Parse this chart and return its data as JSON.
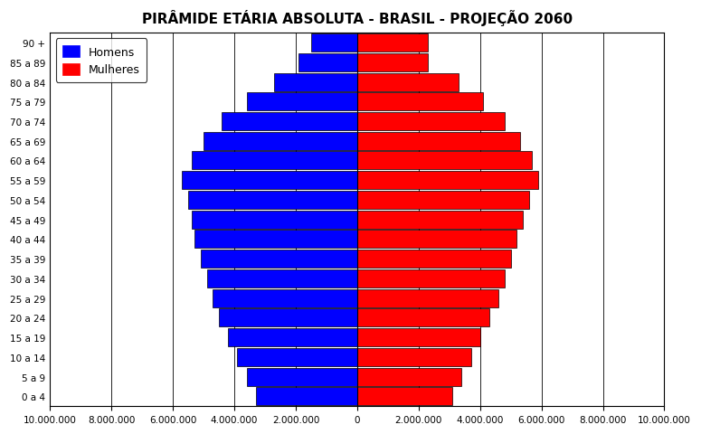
{
  "title": "PIRÂMIDE ETÁRIA ABSOLUTA - BRASIL - PROJEÇÃO 2060",
  "age_groups": [
    "0 a 4",
    "5 a 9",
    "10 a 14",
    "15 a 19",
    "20 a 24",
    "25 a 29",
    "30 a 34",
    "35 a 39",
    "40 a 44",
    "45 a 49",
    "50 a 54",
    "55 a 59",
    "60 a 64",
    "65 a 69",
    "70 a 74",
    "75 a 79",
    "80 a 84",
    "85 a 89",
    "90 +"
  ],
  "homens": [
    3300000,
    3600000,
    3900000,
    4200000,
    4500000,
    4700000,
    4900000,
    5100000,
    5300000,
    5400000,
    5500000,
    5700000,
    5400000,
    5000000,
    4400000,
    3600000,
    2700000,
    1900000,
    1500000
  ],
  "mulheres": [
    3100000,
    3400000,
    3700000,
    4000000,
    4300000,
    4600000,
    4800000,
    5000000,
    5200000,
    5400000,
    5600000,
    5900000,
    5700000,
    5300000,
    4800000,
    4100000,
    3300000,
    2300000,
    2300000
  ],
  "color_homens": "#0000FF",
  "color_mulheres": "#FF0000",
  "xlim": 10000000,
  "xticks": [
    -10000000,
    -8000000,
    -6000000,
    -4000000,
    -2000000,
    0,
    2000000,
    4000000,
    6000000,
    8000000,
    10000000
  ],
  "xtick_labels": [
    "10.000.000",
    "8.000.000",
    "6.000.000",
    "4.000.000",
    "2.000.000",
    "0",
    "2.000.000",
    "4.000.000",
    "6.000.000",
    "8.000.000",
    "10.000.000"
  ],
  "background_color": "#FFFFFF",
  "bar_edgecolor": "#000000",
  "title_fontsize": 11,
  "legend_labels": [
    "Homens",
    "Mulheres"
  ],
  "legend_colors": [
    "#0000FF",
    "#FF0000"
  ],
  "gridline_positions": [
    -8000000,
    -6000000,
    -4000000,
    -2000000,
    0,
    2000000,
    4000000,
    6000000,
    8000000
  ]
}
